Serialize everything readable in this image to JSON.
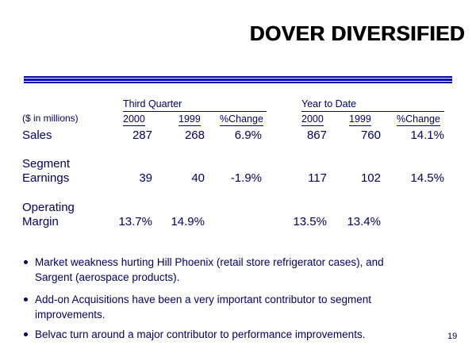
{
  "page": {
    "title": "DOVER DIVERSIFIED",
    "page_number": "19"
  },
  "colors": {
    "title_text": "#000000",
    "body_text": "#000066",
    "rule_thin": "#000099",
    "rule_thick": "#0000cc"
  },
  "table": {
    "units_label": "($ in millions)",
    "groups": [
      {
        "label": "Third Quarter",
        "columns": [
          "2000",
          "1999",
          "%Change"
        ]
      },
      {
        "label": "Year to Date",
        "columns": [
          "2000",
          "1999",
          "%Change"
        ]
      }
    ],
    "rows": [
      {
        "label": "Sales",
        "label_lines": [
          "Sales"
        ],
        "values": [
          "287",
          "268",
          "6.9%",
          "867",
          "760",
          "14.1%"
        ]
      },
      {
        "label": "Segment Earnings",
        "label_lines": [
          "Segment",
          "Earnings"
        ],
        "values": [
          "39",
          "40",
          "-1.9%",
          "117",
          "102",
          "14.5%"
        ]
      },
      {
        "label": "Operating Margin",
        "label_lines": [
          "Operating",
          "Margin"
        ],
        "values": [
          "13.7%",
          "14.9%",
          "",
          "13.5%",
          "13.4%",
          ""
        ]
      }
    ]
  },
  "bullets": [
    {
      "text": "Market weakness hurting Hill Phoenix (retail store refrigerator cases), and Sargent (aerospace products)."
    },
    {
      "text": "Add-on Acquisitions have been a very important contributor to segment improvements."
    },
    {
      "text": "Belvac turn around a major contributor to performance improvements."
    }
  ]
}
